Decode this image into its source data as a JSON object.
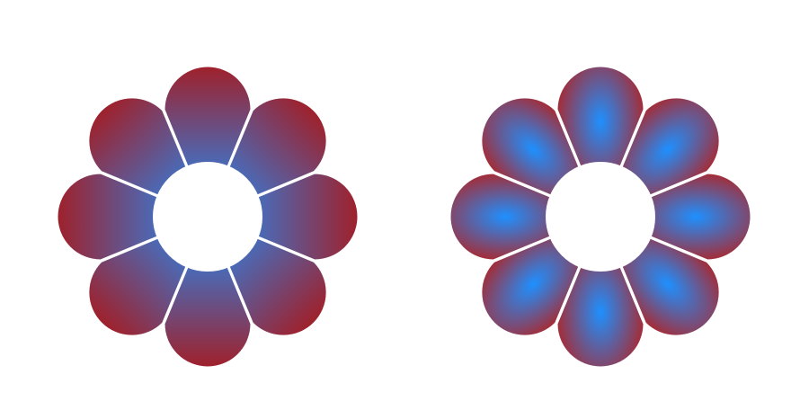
{
  "flowers": [
    {
      "id": "linear-gradient-flower",
      "fill_style": "linear",
      "petal_count": 8,
      "gradient_colors": [
        "#a0202a",
        "#1e90ff"
      ]
    },
    {
      "id": "radial-gradient-flower",
      "fill_style": "radial",
      "petal_count": 8,
      "gradient_colors": [
        "#1e90ff",
        "#b22222"
      ]
    }
  ],
  "colors": {
    "background": "#ffffff",
    "petal_separator": "#ffffff"
  }
}
